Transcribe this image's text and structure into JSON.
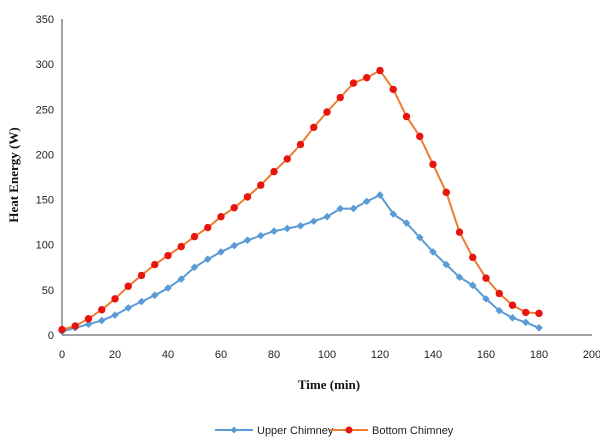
{
  "chart_data": {
    "type": "line",
    "xlabel": "Time (min)",
    "ylabel": "Heat Energy (W)",
    "xlim": [
      0,
      200
    ],
    "ylim": [
      0,
      350
    ],
    "x_ticks": [
      0,
      20,
      40,
      60,
      80,
      100,
      120,
      140,
      160,
      180,
      200
    ],
    "y_ticks": [
      0,
      50,
      100,
      150,
      200,
      250,
      300,
      350
    ],
    "grid": false,
    "legend_position": "bottom",
    "series": [
      {
        "name": "Upper Chimney",
        "color": "#5b9bd5",
        "marker": "diamond",
        "x": [
          0,
          5,
          10,
          15,
          20,
          25,
          30,
          35,
          40,
          45,
          50,
          55,
          60,
          65,
          70,
          75,
          80,
          85,
          90,
          95,
          100,
          105,
          110,
          115,
          120,
          125,
          130,
          135,
          140,
          145,
          150,
          155,
          160,
          165,
          170,
          175,
          180
        ],
        "y": [
          4,
          8,
          12,
          16,
          22,
          30,
          37,
          44,
          52,
          62,
          75,
          84,
          92,
          99,
          105,
          110,
          115,
          118,
          121,
          126,
          131,
          140,
          140,
          148,
          155,
          134,
          124,
          108,
          92,
          78,
          64,
          55,
          40,
          27,
          19,
          14,
          8
        ]
      },
      {
        "name": "Bottom Chimney",
        "color": "#ed7d31",
        "marker_color": "#e8150e",
        "marker": "circle",
        "x": [
          0,
          5,
          10,
          15,
          20,
          25,
          30,
          35,
          40,
          45,
          50,
          55,
          60,
          65,
          70,
          75,
          80,
          85,
          90,
          95,
          100,
          105,
          110,
          115,
          120,
          125,
          130,
          135,
          140,
          145,
          150,
          155,
          160,
          165,
          170,
          175,
          180
        ],
        "y": [
          6,
          10,
          18,
          28,
          40,
          54,
          66,
          78,
          88,
          98,
          109,
          119,
          131,
          141,
          153,
          166,
          181,
          195,
          211,
          230,
          247,
          263,
          279,
          285,
          293,
          272,
          242,
          220,
          189,
          158,
          114,
          86,
          63,
          46,
          33,
          25,
          24
        ]
      }
    ]
  }
}
